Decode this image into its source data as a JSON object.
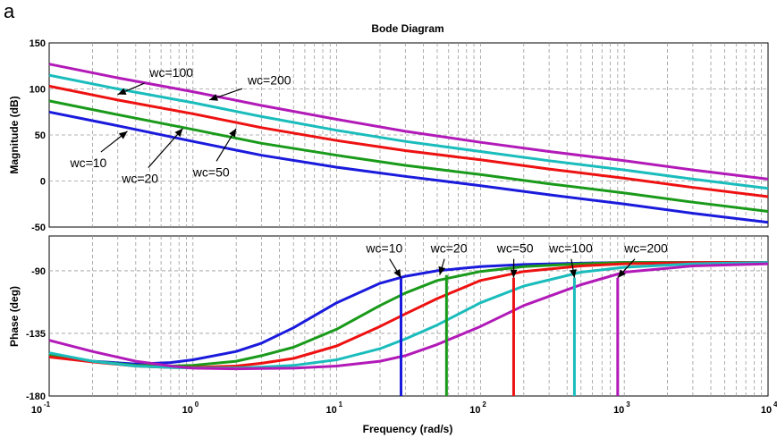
{
  "panel_letter": "a",
  "chart_data": {
    "type": "line",
    "title": "Bode Diagram",
    "xlabel": "Frequency (rad/s)",
    "x_scale": "log",
    "xlim": [
      0.1,
      10000
    ],
    "x_ticks": [
      {
        "value": 0.1,
        "base": "10",
        "exp": "-1"
      },
      {
        "value": 1,
        "base": "10",
        "exp": "0"
      },
      {
        "value": 10,
        "base": "10",
        "exp": "1"
      },
      {
        "value": 100,
        "base": "10",
        "exp": "2"
      },
      {
        "value": 1000,
        "base": "10",
        "exp": "3"
      },
      {
        "value": 10000,
        "base": "10",
        "exp": "4"
      }
    ],
    "grid": true,
    "colors": {
      "wc=10": "#1a1adc",
      "wc=20": "#1a9a1a",
      "wc=50": "#ee1111",
      "wc=100": "#1abcbc",
      "wc=200": "#b21ab8"
    },
    "magnitude": {
      "ylabel": "Magnitude (dB)",
      "ylim": [
        -50,
        150
      ],
      "yticks": [
        -50,
        0,
        50,
        100,
        150
      ],
      "series": [
        {
          "name": "wc=10",
          "x": [
            0.1,
            0.3,
            1,
            3,
            10,
            30,
            100,
            300,
            1000,
            3000,
            10000
          ],
          "y": [
            75,
            60,
            43,
            28,
            15,
            5,
            -5,
            -15,
            -25,
            -35,
            -45
          ]
        },
        {
          "name": "wc=20",
          "x": [
            0.1,
            0.3,
            1,
            3,
            10,
            30,
            100,
            300,
            1000,
            3000,
            10000
          ],
          "y": [
            87,
            72,
            56,
            41,
            28,
            17,
            7,
            -3,
            -13,
            -23,
            -33
          ]
        },
        {
          "name": "wc=50",
          "x": [
            0.1,
            0.3,
            1,
            3,
            10,
            30,
            100,
            300,
            1000,
            3000,
            10000
          ],
          "y": [
            103,
            88,
            73,
            58,
            44,
            33,
            23,
            13,
            3,
            -7,
            -17
          ]
        },
        {
          "name": "wc=100",
          "x": [
            0.1,
            0.3,
            1,
            3,
            10,
            30,
            100,
            300,
            1000,
            3000,
            10000
          ],
          "y": [
            115,
            100,
            85,
            70,
            55,
            43,
            32,
            22,
            12,
            2,
            -8
          ]
        },
        {
          "name": "wc=200",
          "x": [
            0.1,
            0.3,
            1,
            3,
            10,
            30,
            100,
            300,
            1000,
            3000,
            10000
          ],
          "y": [
            127,
            112,
            97,
            82,
            67,
            54,
            42,
            32,
            22,
            12,
            2
          ]
        }
      ],
      "annotations": [
        {
          "text": "wc=100",
          "x": 0.5,
          "y": 113,
          "target_x": 0.3,
          "target_y": 94
        },
        {
          "text": "wc=200",
          "x": 2.4,
          "y": 105,
          "target_x": 1.3,
          "target_y": 88
        },
        {
          "text": "wc=10",
          "x": 0.14,
          "y": 15,
          "target_x": 0.35,
          "target_y": 54
        },
        {
          "text": "wc=20",
          "x": 0.32,
          "y": -2,
          "target_x": 0.85,
          "target_y": 57
        },
        {
          "text": "wc=50",
          "x": 1.0,
          "y": 5,
          "target_x": 2.0,
          "target_y": 57
        }
      ]
    },
    "phase": {
      "ylabel": "Phase (deg)",
      "ylim": [
        -180,
        -65
      ],
      "yticks": [
        -180,
        -135,
        -90
      ],
      "series": [
        {
          "name": "wc=10",
          "x": [
            0.1,
            0.2,
            0.4,
            0.7,
            1,
            2,
            3,
            5,
            10,
            20,
            30,
            50,
            100,
            200,
            500,
            1000,
            3000,
            10000
          ],
          "y": [
            -150,
            -155,
            -157,
            -156,
            -154,
            -148,
            -142,
            -131,
            -113,
            -99,
            -94,
            -90,
            -87,
            -85.5,
            -84.5,
            -84,
            -84,
            -84
          ]
        },
        {
          "name": "wc=20",
          "x": [
            0.1,
            0.2,
            0.4,
            0.7,
            1,
            2,
            3,
            5,
            10,
            20,
            30,
            50,
            100,
            200,
            500,
            1000,
            3000,
            10000
          ],
          "y": [
            -150,
            -155,
            -158,
            -158.5,
            -158,
            -155,
            -151,
            -145,
            -132,
            -115,
            -106,
            -97,
            -90.5,
            -87,
            -85,
            -84,
            -84,
            -84
          ]
        },
        {
          "name": "wc=50",
          "x": [
            0.1,
            0.2,
            0.4,
            0.7,
            1,
            2,
            3,
            5,
            10,
            20,
            30,
            50,
            100,
            200,
            500,
            1000,
            3000,
            10000
          ],
          "y": [
            -152,
            -155.5,
            -158.5,
            -159.5,
            -159.5,
            -158.5,
            -156.5,
            -153,
            -144,
            -130,
            -121,
            -110,
            -97,
            -90.5,
            -86.5,
            -85,
            -84,
            -84
          ]
        },
        {
          "name": "wc=100",
          "x": [
            0.1,
            0.2,
            0.4,
            0.7,
            1,
            2,
            3,
            5,
            10,
            20,
            30,
            50,
            100,
            200,
            500,
            1000,
            3000,
            10000
          ],
          "y": [
            -149,
            -155,
            -158.5,
            -159.5,
            -159.8,
            -159.8,
            -159.2,
            -158,
            -154,
            -146,
            -139,
            -129,
            -113,
            -101,
            -91,
            -87.5,
            -85,
            -84
          ]
        },
        {
          "name": "wc=200",
          "x": [
            0.1,
            0.2,
            0.4,
            0.7,
            1,
            2,
            3,
            5,
            10,
            20,
            30,
            50,
            100,
            200,
            500,
            1000,
            3000,
            10000
          ],
          "y": [
            -140,
            -148,
            -155,
            -158.5,
            -160,
            -160.5,
            -160.3,
            -160,
            -158.5,
            -155,
            -151,
            -143,
            -130,
            -115,
            -100,
            -91,
            -86.5,
            -85
          ]
        }
      ],
      "crossover_markers": [
        {
          "name": "wc=10",
          "x": 28,
          "y": -95
        },
        {
          "name": "wc=20",
          "x": 58,
          "y": -93
        },
        {
          "name": "wc=50",
          "x": 170,
          "y": -95
        },
        {
          "name": "wc=100",
          "x": 450,
          "y": -95
        },
        {
          "name": "wc=200",
          "x": 900,
          "y": -95
        }
      ],
      "annotations": [
        {
          "text": "wc=10",
          "x": 16,
          "y": -77,
          "target_x": 28,
          "target_y": -95
        },
        {
          "text": "wc=20",
          "x": 45,
          "y": -77,
          "target_x": 52,
          "target_y": -93
        },
        {
          "text": "wc=50",
          "x": 130,
          "y": -77,
          "target_x": 170,
          "target_y": -95
        },
        {
          "text": "wc=100",
          "x": 300,
          "y": -77,
          "target_x": 450,
          "target_y": -95
        },
        {
          "text": "wc=200",
          "x": 1000,
          "y": -77,
          "target_x": 900,
          "target_y": -95
        }
      ]
    }
  }
}
